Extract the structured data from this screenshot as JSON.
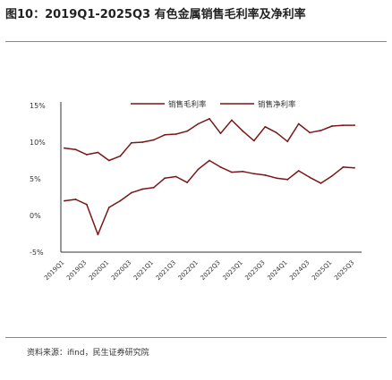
{
  "title": "图10：2019Q1-2025Q3 有色金属销售毛利率及净利率",
  "source": "资料来源：ifind，民生证券研究院",
  "colors": {
    "line": "#7a1717",
    "axis": "#333333",
    "text": "#333333"
  },
  "chart_data": {
    "type": "line",
    "title": "",
    "xlabel": "",
    "ylabel": "",
    "y_unit": "%",
    "ylim": [
      -5,
      15
    ],
    "yticks": [
      -5,
      0,
      5,
      10,
      15
    ],
    "ytick_labels": [
      "-5%",
      "0%",
      "5%",
      "10%",
      "15%"
    ],
    "grid": false,
    "legend": "top-center",
    "categories": [
      "2019Q1",
      "2019Q2",
      "2019Q3",
      "2019Q4",
      "2020Q1",
      "2020Q2",
      "2020Q3",
      "2020Q4",
      "2021Q1",
      "2021Q2",
      "2021Q3",
      "2021Q4",
      "2022Q1",
      "2022Q2",
      "2022Q3",
      "2022Q4",
      "2023Q1",
      "2023Q2",
      "2023Q3",
      "2023Q4",
      "2024Q1",
      "2024Q2",
      "2024Q3",
      "2024Q4",
      "2025Q1",
      "2025Q2",
      "2025Q3"
    ],
    "x_labels": [
      "2019Q1",
      "2019Q3",
      "2020Q1",
      "2020Q3",
      "2021Q1",
      "2021Q3",
      "2022Q1",
      "2022Q3",
      "2023Q1",
      "2023Q3",
      "2024Q1",
      "2024Q3",
      "2025Q1",
      "2025Q3"
    ],
    "series": [
      {
        "name": "销售毛利率",
        "values": [
          9.2,
          9.0,
          8.3,
          8.6,
          7.5,
          8.1,
          9.9,
          10.0,
          10.3,
          11.0,
          11.1,
          11.5,
          12.5,
          13.2,
          11.2,
          13.0,
          11.5,
          10.2,
          12.1,
          11.3,
          10.1,
          12.5,
          11.3,
          11.6,
          12.2,
          12.3,
          12.3
        ]
      },
      {
        "name": "销售净利率",
        "values": [
          2.0,
          2.2,
          1.5,
          -2.6,
          1.1,
          2.0,
          3.1,
          3.6,
          3.8,
          5.1,
          5.3,
          4.5,
          6.3,
          7.5,
          6.6,
          5.9,
          6.0,
          5.7,
          5.5,
          5.1,
          4.9,
          6.1,
          5.2,
          4.4,
          5.4,
          6.6,
          6.5
        ]
      }
    ]
  }
}
